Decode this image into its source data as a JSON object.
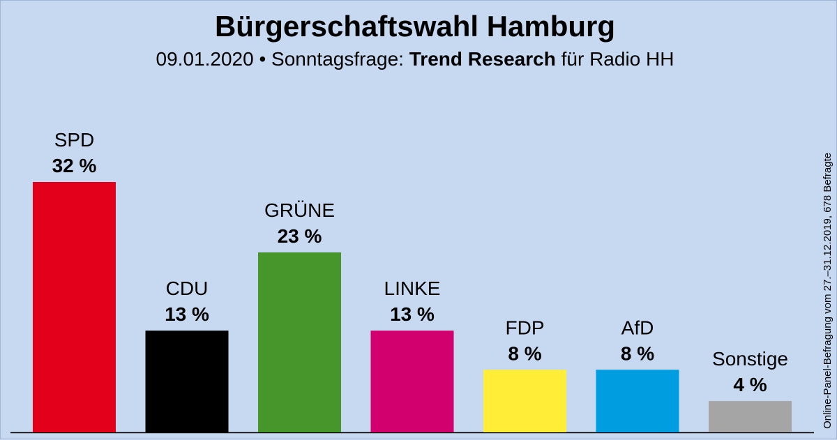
{
  "header": {
    "title": "Bürgerschaftswahl Hamburg",
    "subtitle_date": "09.01.2020 • Sonntagsfrage:",
    "subtitle_institute": "Trend Research",
    "subtitle_client": "für Radio HH"
  },
  "footnote": "Online-Panel-Befragung vom 27.–31.12.2019, 678 Befragte",
  "chart_data": {
    "type": "bar",
    "categories": [
      "SPD",
      "CDU",
      "GRÜNE",
      "LINKE",
      "FDP",
      "AfD",
      "Sonstige"
    ],
    "values": [
      32,
      13,
      23,
      13,
      8,
      8,
      4
    ],
    "value_labels": [
      "32 %",
      "13 %",
      "23 %",
      "13 %",
      "8 %",
      "8 %",
      "4 %"
    ],
    "colors": [
      "#e3001b",
      "#000000",
      "#46962b",
      "#d2006f",
      "#ffed37",
      "#009ee0",
      "#a5a5a5"
    ],
    "ylim": [
      0,
      32
    ],
    "grid": false
  }
}
